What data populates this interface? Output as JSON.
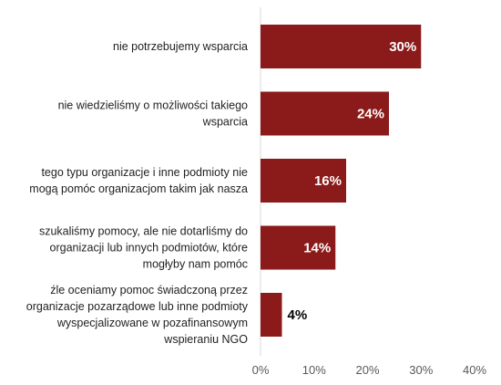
{
  "chart_data": {
    "type": "bar",
    "orientation": "horizontal",
    "categories": [
      [
        "nie potrzebujemy wsparcia"
      ],
      [
        "nie wiedzieliśmy o możliwości takiego",
        "wsparcia"
      ],
      [
        "tego typu organizacje i inne podmioty nie",
        "mogą pomóc organizacjom takim jak nasza"
      ],
      [
        "szukaliśmy pomocy, ale nie dotarliśmy do",
        "organizacji lub innych podmiotów, które",
        "mogłyby nam pomóc"
      ],
      [
        "źle oceniamy pomoc świadczoną przez",
        "organizacje pozarządowe lub inne podmioty",
        "wyspecjalizowane w pozafinansowym",
        "wspieraniu NGO"
      ]
    ],
    "values": [
      30,
      24,
      16,
      14,
      4
    ],
    "value_labels": [
      "30%",
      "24%",
      "16%",
      "14%",
      "4%"
    ],
    "xlim": [
      0,
      40
    ],
    "xticks": [
      0,
      10,
      20,
      30,
      40
    ],
    "xtick_labels": [
      "0%",
      "10%",
      "20%",
      "30%",
      "40%"
    ],
    "bar_color": "#8b1a1a",
    "axis_color": "#d9d9d9",
    "grid": false,
    "legend": "none"
  }
}
